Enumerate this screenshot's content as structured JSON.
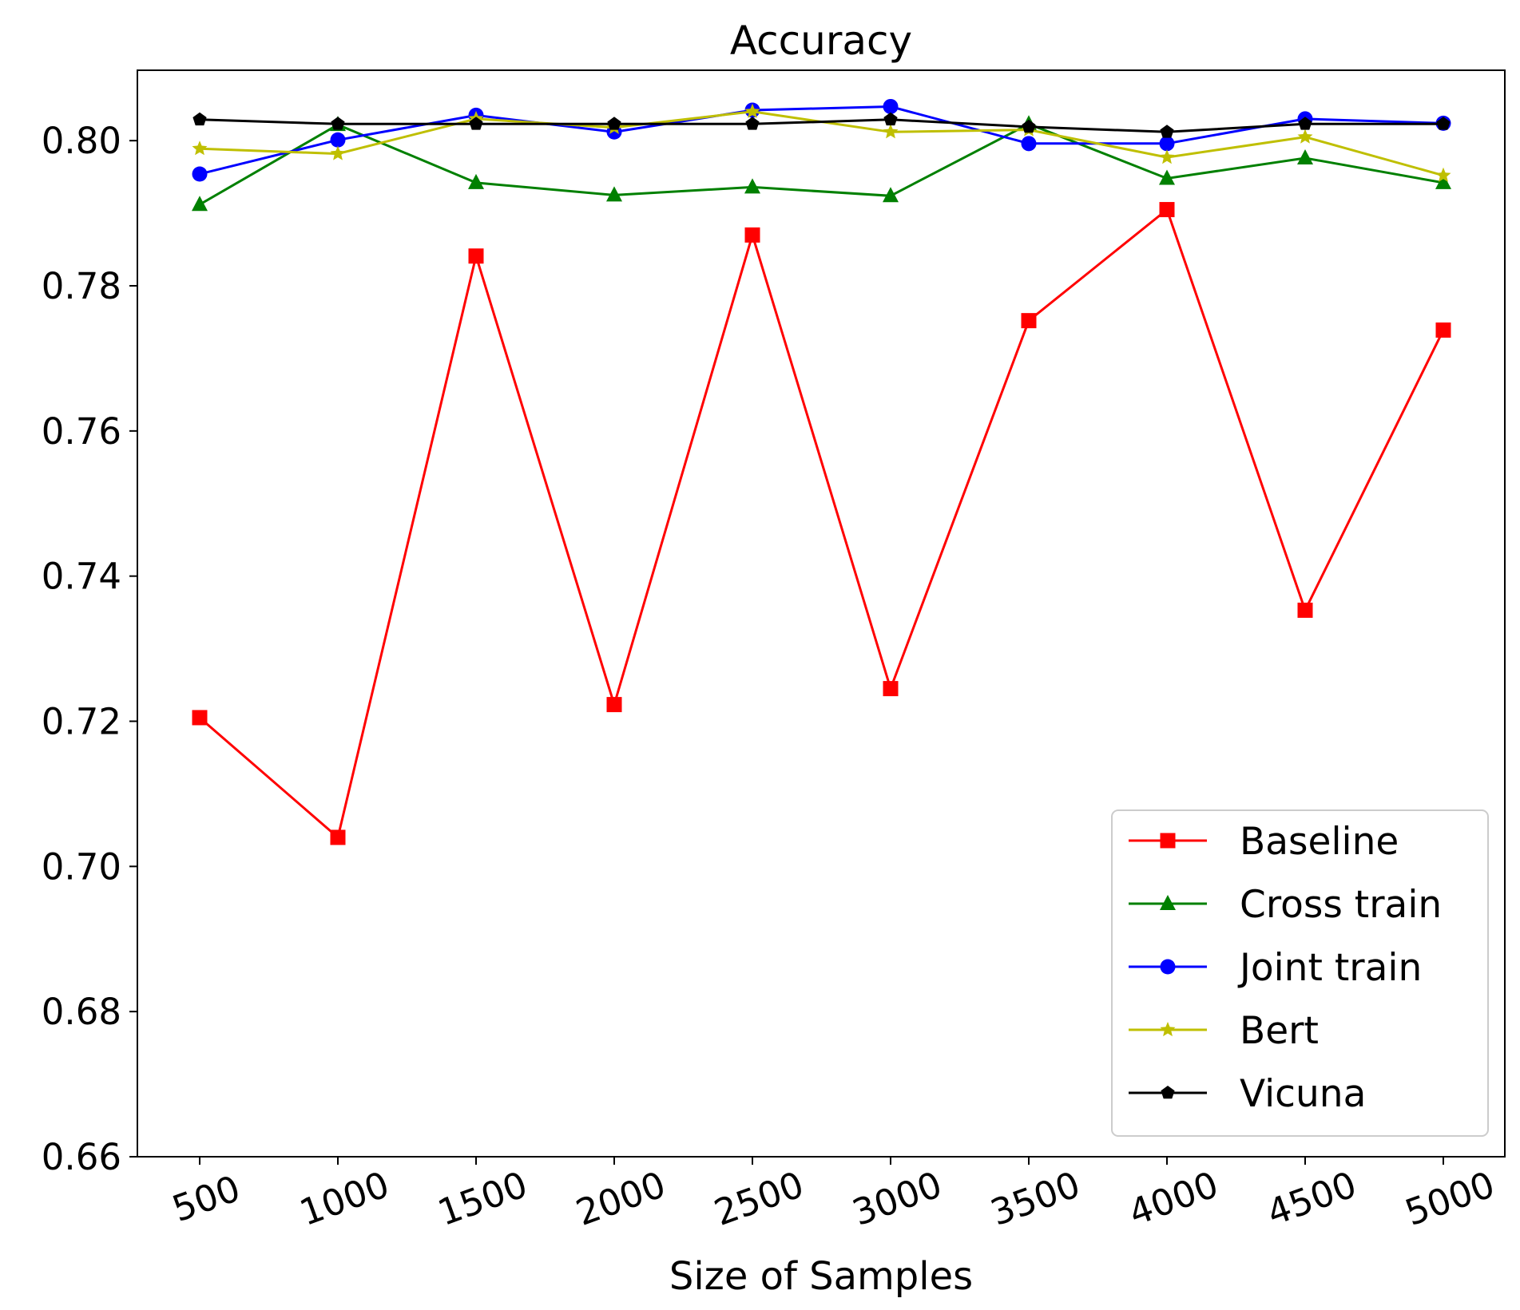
{
  "chart_data": {
    "type": "line",
    "title": "Accuracy",
    "xlabel": "Size of Samples",
    "ylabel": "",
    "x": [
      500,
      1000,
      1500,
      2000,
      2500,
      3000,
      3500,
      4000,
      4500,
      5000
    ],
    "x_tick_labels": [
      "500",
      "1000",
      "1500",
      "2000",
      "2500",
      "3000",
      "3500",
      "4000",
      "4500",
      "5000"
    ],
    "y_tick_values": [
      0.66,
      0.68,
      0.7,
      0.72,
      0.74,
      0.76,
      0.78,
      0.8
    ],
    "y_tick_labels": [
      "0.66",
      "0.68",
      "0.70",
      "0.72",
      "0.74",
      "0.76",
      "0.78",
      "0.80"
    ],
    "ylim": [
      0.66,
      0.8097
    ],
    "grid": false,
    "legend_position": "lower-right",
    "series": [
      {
        "name": "Baseline",
        "color": "#ff0000",
        "marker": "square",
        "values": [
          0.7205,
          0.704,
          0.7841,
          0.7223,
          0.787,
          0.7245,
          0.7752,
          0.7905,
          0.7353,
          0.7739
        ]
      },
      {
        "name": "Cross train",
        "color": "#008000",
        "marker": "triangle",
        "values": [
          0.7912,
          0.8022,
          0.7942,
          0.7925,
          0.7936,
          0.7924,
          0.8023,
          0.7948,
          0.7976,
          0.7942
        ]
      },
      {
        "name": "Joint train",
        "color": "#0000ff",
        "marker": "circle",
        "values": [
          0.7954,
          0.8001,
          0.8035,
          0.8012,
          0.8042,
          0.8047,
          0.7996,
          0.7996,
          0.803,
          0.8024
        ]
      },
      {
        "name": "Bert",
        "color": "#bfbf00",
        "marker": "star",
        "values": [
          0.7989,
          0.7982,
          0.803,
          0.8018,
          0.804,
          0.8012,
          0.8015,
          0.7977,
          0.8005,
          0.7952
        ]
      },
      {
        "name": "Vicuna",
        "color": "#000000",
        "marker": "pentagon",
        "values": [
          0.8029,
          0.8023,
          0.8023,
          0.8023,
          0.8023,
          0.8029,
          0.8019,
          0.8012,
          0.8023,
          0.8023
        ]
      }
    ]
  }
}
